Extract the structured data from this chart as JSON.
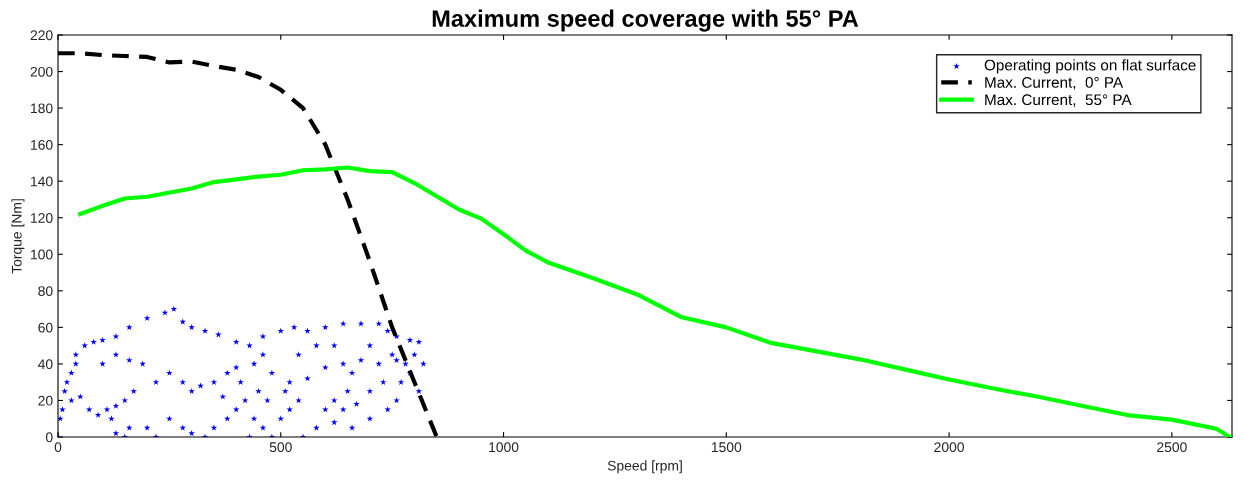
{
  "chart_data": {
    "type": "line",
    "title": "Maximum speed coverage with 55° PA",
    "xlabel": "Speed [rpm]",
    "ylabel": "Torque [Nm]",
    "xlim": [
      0,
      2635
    ],
    "xticks": [
      0,
      500,
      1000,
      1500,
      2000,
      2500
    ],
    "ylim": [
      0,
      220
    ],
    "yticks": [
      0,
      20,
      40,
      60,
      80,
      100,
      120,
      140,
      160,
      180,
      200,
      220
    ],
    "grid": false,
    "legend": "top right",
    "series": [
      {
        "name": "Operating points on flat surface",
        "type": "scatter",
        "marker": "star",
        "color": "#0000ff",
        "x": [
          0,
          5,
          10,
          15,
          20,
          30,
          40,
          40,
          60,
          80,
          100,
          130,
          160,
          200,
          240,
          260,
          280,
          300,
          330,
          360,
          400,
          430,
          460,
          500,
          530,
          560,
          600,
          640,
          680,
          720,
          740,
          760,
          790,
          810,
          30,
          50,
          70,
          90,
          110,
          130,
          150,
          170,
          160,
          150,
          130,
          120,
          100,
          130,
          160,
          190,
          220,
          250,
          280,
          300,
          320,
          350,
          380,
          400,
          440,
          480,
          520,
          560,
          600,
          640,
          680,
          720,
          760,
          780,
          770,
          760,
          740,
          700,
          660,
          620,
          600,
          620,
          650,
          660,
          640,
          670,
          700,
          730,
          200,
          220,
          250,
          280,
          300,
          350,
          380,
          400,
          420,
          450,
          470,
          440,
          460,
          480,
          500,
          520,
          540,
          510,
          430,
          550,
          580,
          330,
          370,
          410,
          460,
          540,
          580,
          620,
          700,
          750,
          790,
          800,
          810,
          820
        ],
        "values": [
          0,
          10,
          15,
          25,
          30,
          35,
          40,
          45,
          50,
          52,
          53,
          55,
          60,
          65,
          68,
          70,
          63,
          60,
          58,
          56,
          52,
          50,
          55,
          58,
          60,
          58,
          60,
          62,
          62,
          62,
          58,
          55,
          53,
          52,
          20,
          22,
          15,
          12,
          15,
          17,
          20,
          25,
          5,
          0,
          2,
          10,
          40,
          45,
          42,
          40,
          30,
          35,
          30,
          25,
          28,
          30,
          35,
          38,
          40,
          35,
          30,
          32,
          38,
          40,
          42,
          40,
          42,
          40,
          30,
          20,
          15,
          10,
          5,
          8,
          15,
          20,
          25,
          35,
          15,
          18,
          25,
          30,
          5,
          0,
          10,
          5,
          2,
          5,
          10,
          15,
          20,
          25,
          20,
          10,
          5,
          0,
          10,
          15,
          20,
          25,
          0,
          0,
          5,
          0,
          22,
          30,
          45,
          45,
          50,
          50,
          50,
          45,
          35,
          45,
          25,
          40
        ]
      },
      {
        "name": "Max. Current,  0° PA",
        "line_style": "dashed",
        "color": "#000000",
        "x": [
          0,
          50,
          100,
          150,
          200,
          250,
          300,
          350,
          400,
          450,
          500,
          550,
          600,
          650,
          700,
          750,
          800,
          850
        ],
        "values": [
          210,
          210,
          209,
          208.5,
          208,
          205,
          205.5,
          203,
          201,
          197,
          190,
          180,
          160,
          130,
          96,
          60,
          30,
          0
        ]
      },
      {
        "name": "Max. Current,  55° PA",
        "line_style": "solid",
        "color": "#00ff00",
        "x": [
          50,
          100,
          150,
          200,
          300,
          350,
          400,
          450,
          500,
          550,
          600,
          650,
          700,
          750,
          800,
          900,
          950,
          1000,
          1050,
          1100,
          1200,
          1300,
          1400,
          1500,
          1600,
          1700,
          1800,
          1900,
          2000,
          2100,
          2200,
          2300,
          2400,
          2500,
          2600,
          2630
        ],
        "values": [
          122,
          126.5,
          130.5,
          131.5,
          136,
          139.5,
          141,
          142.5,
          143.5,
          146,
          146.5,
          147.5,
          145.5,
          145,
          139,
          124.5,
          119.5,
          111,
          102,
          95.5,
          87,
          78,
          65.5,
          60,
          51.5,
          47,
          42.5,
          37,
          31.5,
          26.5,
          22,
          17,
          12,
          9.5,
          4.5,
          0
        ]
      }
    ]
  }
}
